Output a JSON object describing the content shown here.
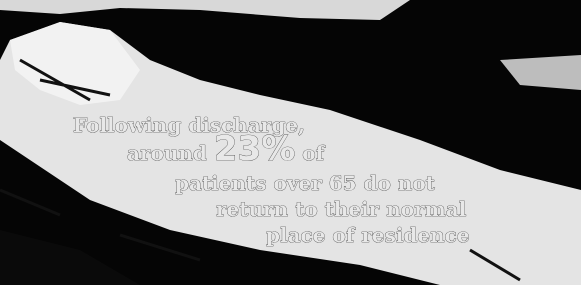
{
  "statement": {
    "line1": "Following discharge,",
    "line2_before": "around",
    "highlight": "23%",
    "line2_after": "of",
    "line3": "patients over 65 do not",
    "line4": "return to their normal",
    "line5": "place of residence"
  }
}
